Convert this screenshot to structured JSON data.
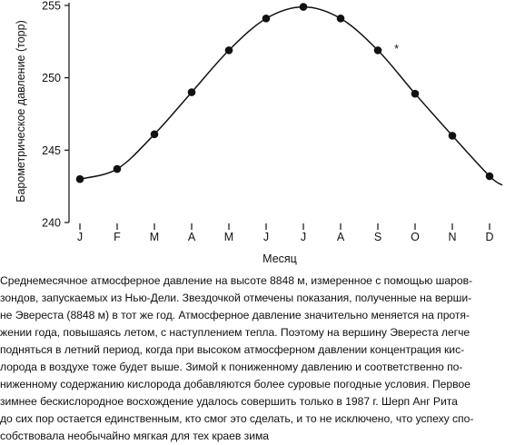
{
  "chart_data": {
    "type": "line",
    "title": "",
    "xlabel": "Месяц",
    "ylabel": "Барометрическое давление (торр)",
    "categories": [
      "J",
      "F",
      "M",
      "A",
      "M",
      "J",
      "J",
      "A",
      "S",
      "O",
      "N",
      "D"
    ],
    "ylim": [
      240,
      255
    ],
    "yticks": [
      240,
      245,
      250,
      255
    ],
    "series": [
      {
        "values": [
          243.0,
          243.7,
          246.1,
          249.0,
          251.9,
          254.1,
          254.9,
          254.1,
          251.9,
          248.9,
          246.0,
          243.2
        ]
      }
    ],
    "annotations": [
      {
        "label": "*",
        "month_index": 8.5,
        "value": 252.1
      }
    ],
    "grid": false,
    "legend": "none",
    "colors": {
      "line": "#111111",
      "markers": "#111111"
    }
  },
  "caption": {
    "lines": [
      "Среднемесячное атмосферное давление на высоте 8848 м, измеренное с помощью шаров-",
      "зондов, запускаемых из Нью-Дели. Звездочкой отмечены показания, полученные на верши-",
      "не Эвереста (8848 м) в тот же год. Атмосферное давление значительно меняется на протя-",
      "жении года, повышаясь летом, с наступлением тепла. Поэтому на вершину Эвереста легче",
      "подняться в летний период, когда при высоком атмосферном давлении концентрация кис-",
      "лорода в воздухе тоже будет выше. Зимой к пониженному давлению и соответственно по-",
      "ниженному содержанию кислорода добавляются более суровые погодные условия. Первое",
      "зимнее бескислородное восхождение удалось совершить только в 1987 г. Шерп Анг Рита",
      "до сих пор остается единственным, кто смог это сделать, и то не исключено, что успеху спо-",
      "собствовала необычайно мягкая для тех краев зима"
    ]
  }
}
